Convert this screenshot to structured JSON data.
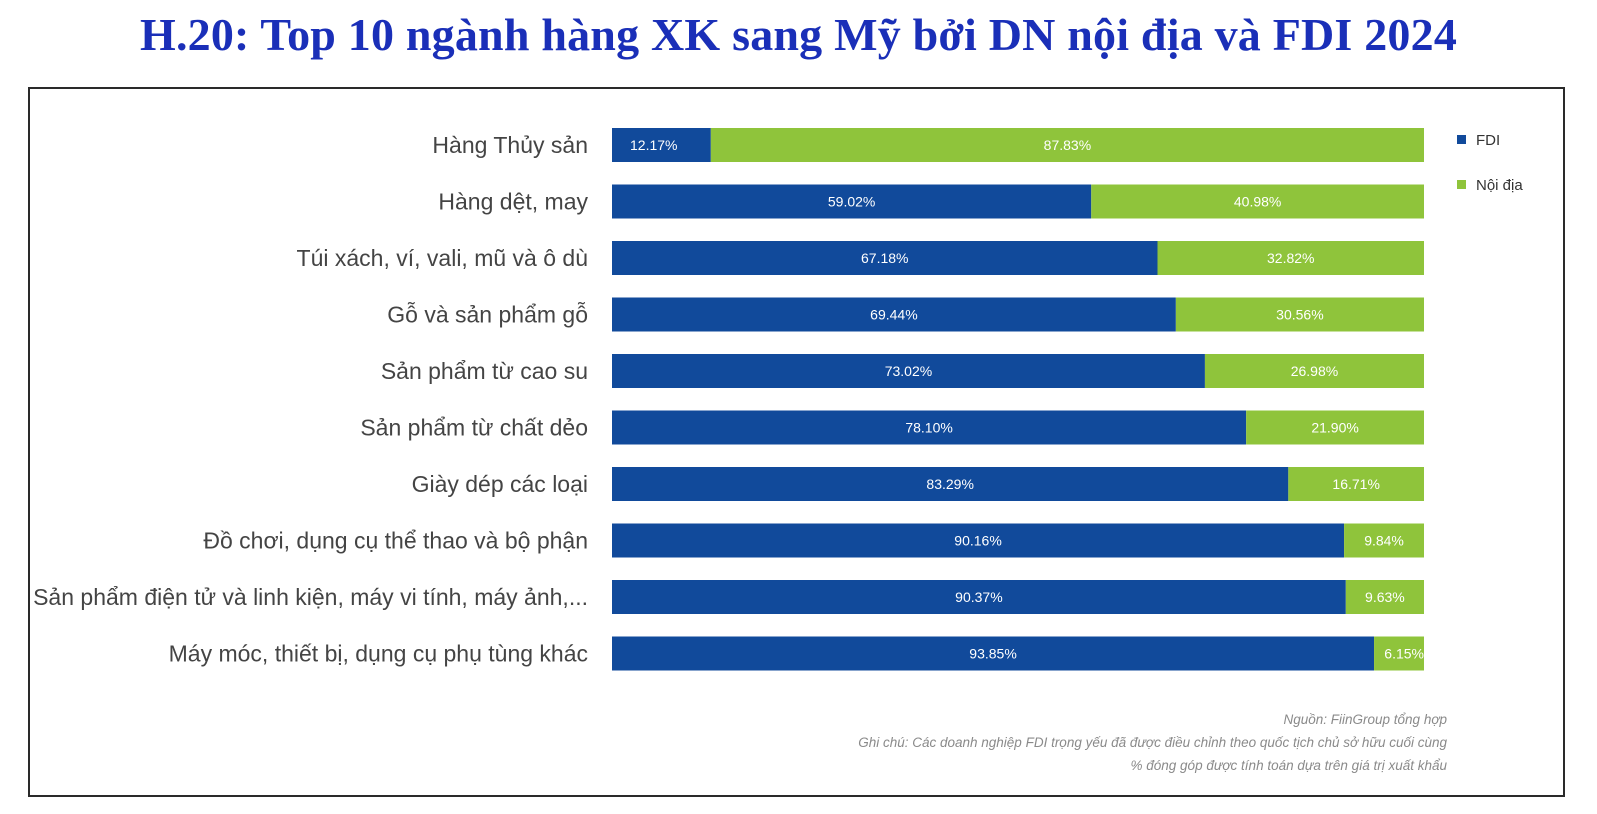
{
  "chart_data": {
    "type": "bar",
    "orientation": "horizontal",
    "stacked": true,
    "title": "H.20: Top 10 ngành hàng XK sang Mỹ bởi DN nội địa và FDI 2024",
    "categories": [
      "Hàng Thủy sản",
      "Hàng dệt, may",
      "Túi xách, ví, vali, mũ và ô dù",
      "Gỗ và sản phẩm gỗ",
      "Sản phẩm từ cao su",
      "Sản phẩm từ chất dẻo",
      "Giày dép các loại",
      "Đồ chơi, dụng cụ thể thao và bộ phận",
      "Sản phẩm điện tử và linh kiện, máy vi tính, máy ảnh,...",
      "Máy móc, thiết bị, dụng cụ phụ tùng khác"
    ],
    "series": [
      {
        "name": "FDI",
        "color": "#114a9b",
        "values": [
          12.17,
          59.02,
          67.18,
          69.44,
          73.02,
          78.1,
          83.29,
          90.16,
          90.37,
          93.85
        ],
        "labels": [
          "12.17%",
          "59.02%",
          "67.18%",
          "69.44%",
          "73.02%",
          "78.10%",
          "83.29%",
          "90.16%",
          "90.37%",
          "93.85%"
        ]
      },
      {
        "name": "Nội địa",
        "color": "#8fc43b",
        "values": [
          87.83,
          40.98,
          32.82,
          30.56,
          26.98,
          21.9,
          16.71,
          9.84,
          9.63,
          6.15
        ],
        "labels": [
          "87.83%",
          "40.98%",
          "32.82%",
          "30.56%",
          "26.98%",
          "21.90%",
          "16.71%",
          "9.84%",
          "9.63%",
          "6.15%"
        ]
      }
    ],
    "xlim": [
      0,
      100
    ],
    "grid": false,
    "legend_position": "top-right",
    "source_note": "Nguồn: FiinGroup tổng hợp",
    "footnotes": [
      "Ghi chú: Các doanh nghiệp FDI trọng yếu đã được điều chỉnh theo quốc tịch chủ sở hữu cuối cùng",
      "% đóng góp được tính toán dựa trên giá trị xuất khẩu"
    ]
  }
}
